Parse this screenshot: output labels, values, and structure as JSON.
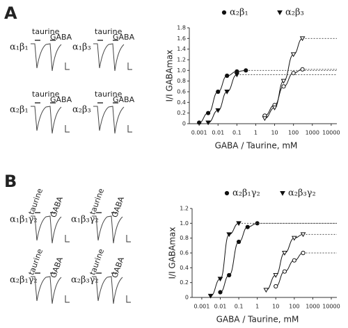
{
  "panels": [
    {
      "label": "A",
      "traces": [
        {
          "receptor": "α₁β₁",
          "labels": [
            "taurine",
            "GABA"
          ]
        },
        {
          "receptor": "α₁β₃",
          "labels": [
            "taurine",
            "GABA"
          ]
        },
        {
          "receptor": "α₂β₁",
          "labels": [
            "taurine",
            "GABA"
          ]
        },
        {
          "receptor": "α₂β₃",
          "labels": [
            "taurine",
            "GABA"
          ]
        }
      ]
    },
    {
      "label": "B",
      "traces": [
        {
          "receptor": "α₁β₁γ₂",
          "labels": [
            "taurine",
            "GABA"
          ]
        },
        {
          "receptor": "α₁β₃γ₂",
          "labels": [
            "taurine",
            "GABA"
          ]
        },
        {
          "receptor": "α₂β₁γ₂",
          "labels": [
            "taurine",
            "GABA"
          ]
        },
        {
          "receptor": "α₂β₃γ₂",
          "labels": [
            "taurine",
            "GABA"
          ]
        }
      ]
    }
  ],
  "chart_data": [
    {
      "type": "line",
      "log_x": true,
      "y_label": "I/I GABAmax",
      "x_label": "GABA / Taurine, mM",
      "xlim": [
        0.0003,
        20000
      ],
      "xticks": [
        0.001,
        0.01,
        0.1,
        1,
        10,
        100,
        1000,
        10000
      ],
      "ylim": [
        0,
        1.8
      ],
      "yticks": [
        0,
        0.2,
        0.4,
        0.6,
        0.8,
        {
          "value": 1,
          "label": "1.0"
        },
        1.2,
        1.4,
        1.6,
        1.8
      ],
      "series": [
        {
          "name": "α₂β₁",
          "marker": "circle",
          "color": "#111",
          "gaba_x": [
            0.001,
            0.003,
            0.01,
            0.03,
            0.1,
            0.3
          ],
          "gaba_values": [
            0.02,
            0.2,
            0.6,
            0.9,
            0.98,
            1.0
          ],
          "taurine_x": [
            3,
            10,
            30,
            100,
            300
          ],
          "taurine_values": [
            0.15,
            0.35,
            0.7,
            0.95,
            1.02
          ]
        },
        {
          "name": "α₂β₃",
          "marker": "triangle",
          "color": "#111",
          "gaba_x": [
            0.003,
            0.01,
            0.03,
            0.1
          ],
          "gaba_values": [
            0.02,
            0.25,
            0.6,
            0.92
          ],
          "taurine_x": [
            3,
            10,
            30,
            100,
            300
          ],
          "taurine_values": [
            0.1,
            0.3,
            0.8,
            1.3,
            1.6
          ]
        }
      ]
    },
    {
      "type": "line",
      "log_x": true,
      "y_label": "I/I GABAmax",
      "x_label": "GABA / Taurine, mM",
      "xlim": [
        0.0003,
        20000
      ],
      "xticks": [
        0.001,
        0.01,
        0.1,
        1,
        10,
        100,
        1000,
        10000
      ],
      "ylim": [
        0,
        1.2
      ],
      "yticks": [
        0,
        0.2,
        0.4,
        0.6,
        0.8,
        {
          "value": 1,
          "label": "1.0"
        },
        1.2
      ],
      "series": [
        {
          "name": "α₂β₁γ₂",
          "marker": "circle",
          "color": "#111",
          "gaba_x": [
            0.01,
            0.03,
            0.1,
            0.3,
            1
          ],
          "gaba_values": [
            0.07,
            0.3,
            0.75,
            0.95,
            1.0
          ],
          "taurine_x": [
            10,
            30,
            100,
            300
          ],
          "taurine_values": [
            0.15,
            0.35,
            0.5,
            0.6
          ]
        },
        {
          "name": "α₂β₃γ₂",
          "marker": "triangle",
          "color": "#111",
          "gaba_x": [
            0.003,
            0.01,
            0.03,
            0.1
          ],
          "gaba_values": [
            0.02,
            0.25,
            0.85,
            1.0
          ],
          "taurine_x": [
            3,
            10,
            30,
            100,
            300
          ],
          "taurine_values": [
            0.1,
            0.3,
            0.6,
            0.8,
            0.85
          ]
        }
      ]
    }
  ]
}
